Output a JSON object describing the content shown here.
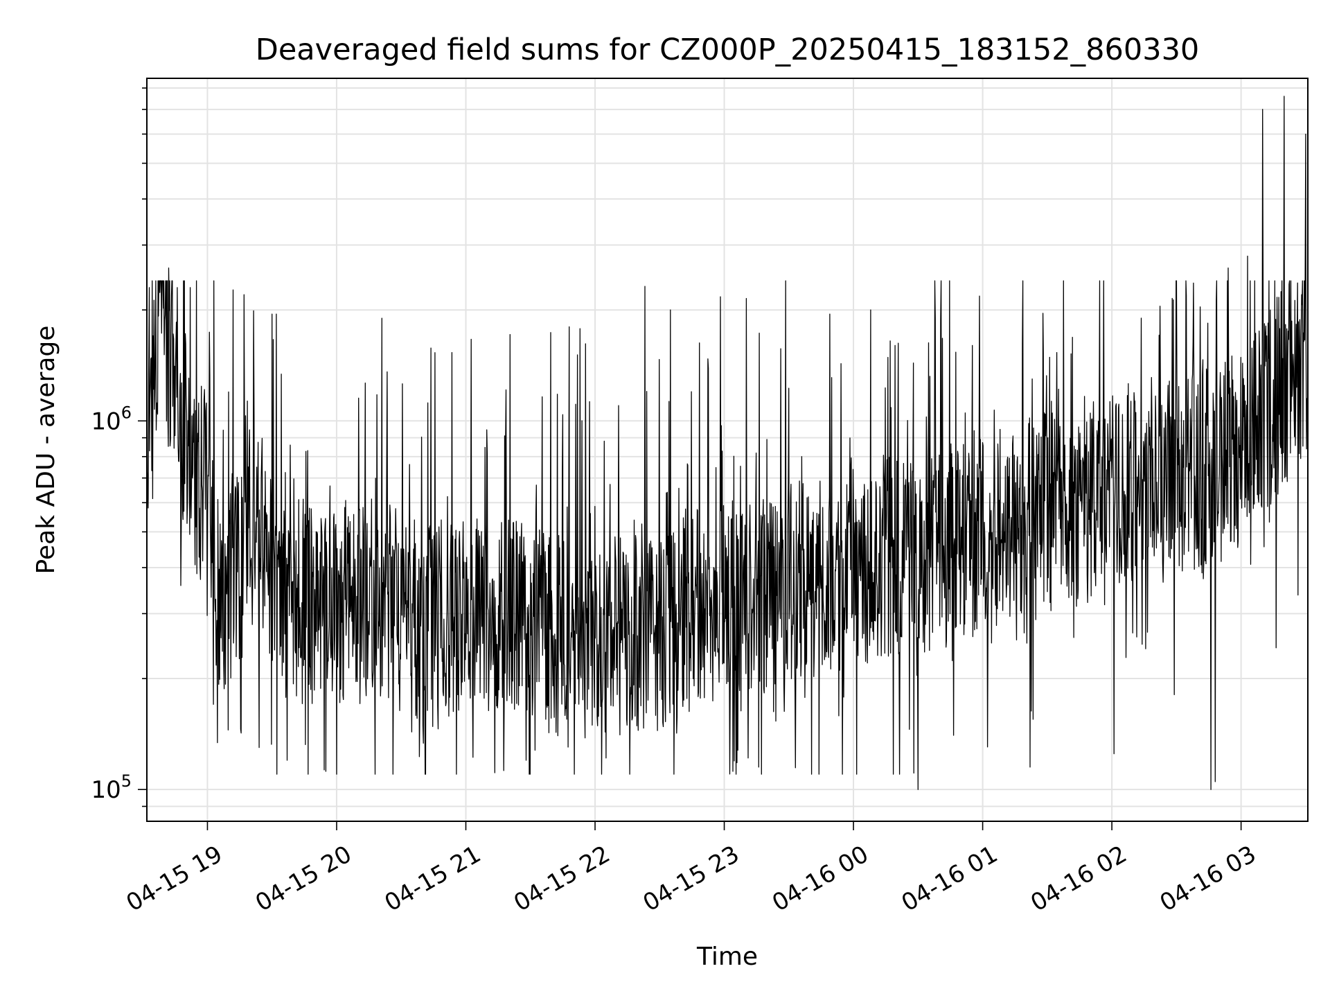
{
  "chart_data": {
    "type": "line",
    "title": "Deaveraged field sums for CZ000P_20250415_183152_860330",
    "xlabel": "Time",
    "ylabel": "Peak ADU - average",
    "x_range": [
      "2025-04-15T18:31:52",
      "2025-04-16T03:31:00"
    ],
    "y_scale": "log",
    "ylim": [
      82000,
      8500000
    ],
    "grid": true,
    "line_color": "#000000",
    "grid_color": "#e3e3e3",
    "x_ticks": [
      {
        "time": "2025-04-15T19:00:00",
        "label": "04-15 19"
      },
      {
        "time": "2025-04-15T20:00:00",
        "label": "04-15 20"
      },
      {
        "time": "2025-04-15T21:00:00",
        "label": "04-15 21"
      },
      {
        "time": "2025-04-15T22:00:00",
        "label": "04-15 22"
      },
      {
        "time": "2025-04-15T23:00:00",
        "label": "04-15 23"
      },
      {
        "time": "2025-04-16T00:00:00",
        "label": "04-16 00"
      },
      {
        "time": "2025-04-16T01:00:00",
        "label": "04-16 01"
      },
      {
        "time": "2025-04-16T02:00:00",
        "label": "04-16 02"
      },
      {
        "time": "2025-04-16T03:00:00",
        "label": "04-16 03"
      }
    ],
    "y_major_ticks": [
      {
        "value": 100000,
        "base": "10",
        "exp": "5"
      },
      {
        "value": 1000000,
        "base": "10",
        "exp": "6"
      }
    ],
    "y_minor_ticks": [
      90000,
      200000,
      300000,
      400000,
      500000,
      600000,
      700000,
      800000,
      900000,
      2000000,
      3000000,
      4000000,
      5000000,
      6000000,
      7000000,
      8000000
    ],
    "series": [
      {
        "name": "",
        "points": [
          [
            "2025-04-15T18:31:52",
            900000
          ],
          [
            "2025-04-15T18:35:00",
            1500000
          ],
          [
            "2025-04-15T18:40:00",
            2100000
          ],
          [
            "2025-04-15T18:45:00",
            1000000
          ],
          [
            "2025-04-15T18:50:00",
            950000
          ],
          [
            "2025-04-15T18:55:00",
            700000
          ],
          [
            "2025-04-15T19:00:00",
            650000
          ],
          [
            "2025-04-15T19:05:00",
            300000
          ],
          [
            "2025-04-15T19:10:00",
            360000
          ],
          [
            "2025-04-15T19:15:00",
            420000
          ],
          [
            "2025-04-15T19:20:00",
            520000
          ],
          [
            "2025-04-15T19:25:00",
            450000
          ],
          [
            "2025-04-15T19:30:00",
            380000
          ],
          [
            "2025-04-15T19:35:00",
            330000
          ],
          [
            "2025-04-15T19:40:00",
            320000
          ],
          [
            "2025-04-15T19:45:00",
            330000
          ],
          [
            "2025-04-15T19:50:00",
            300000
          ],
          [
            "2025-04-15T19:55:00",
            310000
          ],
          [
            "2025-04-15T20:00:00",
            320000
          ],
          [
            "2025-04-15T20:10:00",
            340000
          ],
          [
            "2025-04-15T20:20:00",
            330000
          ],
          [
            "2025-04-15T20:30:00",
            300000
          ],
          [
            "2025-04-15T20:40:00",
            280000
          ],
          [
            "2025-04-15T20:50:00",
            290000
          ],
          [
            "2025-04-15T21:00:00",
            300000
          ],
          [
            "2025-04-15T21:10:00",
            290000
          ],
          [
            "2025-04-15T21:20:00",
            300000
          ],
          [
            "2025-04-15T21:30:00",
            280000
          ],
          [
            "2025-04-15T21:40:00",
            260000
          ],
          [
            "2025-04-15T21:50:00",
            260000
          ],
          [
            "2025-04-15T22:00:00",
            260000
          ],
          [
            "2025-04-15T22:10:00",
            260000
          ],
          [
            "2025-04-15T22:20:00",
            260000
          ],
          [
            "2025-04-15T22:30:00",
            270000
          ],
          [
            "2025-04-15T22:40:00",
            300000
          ],
          [
            "2025-04-15T22:50:00",
            310000
          ],
          [
            "2025-04-15T23:00:00",
            320000
          ],
          [
            "2025-04-15T23:10:00",
            330000
          ],
          [
            "2025-04-15T23:20:00",
            340000
          ],
          [
            "2025-04-15T23:30:00",
            360000
          ],
          [
            "2025-04-15T23:40:00",
            370000
          ],
          [
            "2025-04-15T23:50:00",
            380000
          ],
          [
            "2025-04-16T00:00:00",
            400000
          ],
          [
            "2025-04-16T00:10:00",
            420000
          ],
          [
            "2025-04-16T00:20:00",
            430000
          ],
          [
            "2025-04-16T00:30:00",
            440000
          ],
          [
            "2025-04-16T00:40:00",
            450000
          ],
          [
            "2025-04-16T00:50:00",
            470000
          ],
          [
            "2025-04-16T01:00:00",
            500000
          ],
          [
            "2025-04-16T01:10:00",
            520000
          ],
          [
            "2025-04-16T01:20:00",
            540000
          ],
          [
            "2025-04-16T01:30:00",
            560000
          ],
          [
            "2025-04-16T01:40:00",
            580000
          ],
          [
            "2025-04-16T01:50:00",
            600000
          ],
          [
            "2025-04-16T02:00:00",
            620000
          ],
          [
            "2025-04-16T02:10:00",
            650000
          ],
          [
            "2025-04-16T02:20:00",
            680000
          ],
          [
            "2025-04-16T02:30:00",
            700000
          ],
          [
            "2025-04-16T02:40:00",
            720000
          ],
          [
            "2025-04-16T02:50:00",
            750000
          ],
          [
            "2025-04-16T03:00:00",
            850000
          ],
          [
            "2025-04-16T03:10:00",
            1000000
          ],
          [
            "2025-04-16T03:20:00",
            1300000
          ],
          [
            "2025-04-16T03:31:00",
            1500000
          ]
        ],
        "spikes": [
          [
            "2025-04-15T18:33:00",
            2300000
          ],
          [
            "2025-04-15T18:42:00",
            2600000
          ],
          [
            "2025-04-15T18:46:00",
            2300000
          ],
          [
            "2025-04-15T18:52:00",
            2300000
          ],
          [
            "2025-04-15T19:17:00",
            2200000
          ],
          [
            "2025-04-15T19:30:00",
            1950000
          ],
          [
            "2025-04-15T19:32:00",
            1950000
          ],
          [
            "2025-04-15T20:21:00",
            1900000
          ],
          [
            "2025-04-15T21:48:00",
            1800000
          ],
          [
            "2025-04-15T21:53:00",
            1780000
          ],
          [
            "2025-04-15T22:35:00",
            2000000
          ],
          [
            "2025-04-15T23:49:00",
            1950000
          ],
          [
            "2025-04-16T00:08:00",
            2000000
          ],
          [
            "2025-04-16T00:38:00",
            1900000
          ],
          [
            "2025-04-16T02:28:00",
            2150000
          ],
          [
            "2025-04-16T02:54:00",
            2600000
          ],
          [
            "2025-04-16T03:03:00",
            2800000
          ],
          [
            "2025-04-16T03:10:00",
            7000000
          ],
          [
            "2025-04-16T03:20:00",
            7600000
          ],
          [
            "2025-04-16T03:30:00",
            6000000
          ]
        ],
        "dips": [
          [
            "2025-04-15T19:24:00",
            130000
          ],
          [
            "2025-04-15T19:37:00",
            120000
          ],
          [
            "2025-04-15T19:55:00",
            112000
          ],
          [
            "2025-04-15T20:00:00",
            110000
          ],
          [
            "2025-04-15T21:28:00",
            120000
          ],
          [
            "2025-04-15T23:04:00",
            112000
          ],
          [
            "2025-04-15T23:16:00",
            115000
          ],
          [
            "2025-04-15T23:44:00",
            110000
          ],
          [
            "2025-04-16T00:30:00",
            100000
          ],
          [
            "2025-04-16T01:22:00",
            115000
          ],
          [
            "2025-04-16T02:01:00",
            125000
          ],
          [
            "2025-04-16T02:46:00",
            100000
          ],
          [
            "2025-04-16T02:48:00",
            105000
          ]
        ]
      }
    ]
  }
}
